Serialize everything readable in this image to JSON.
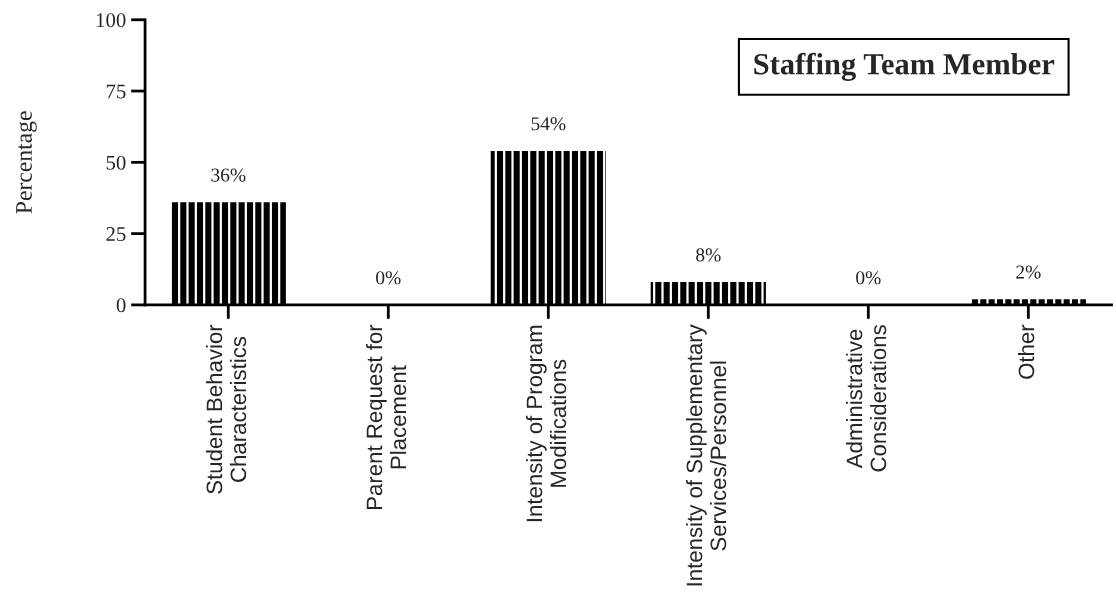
{
  "chart_data": {
    "type": "bar",
    "title": "Staffing Team Member",
    "ylabel": "Percentage",
    "categories": [
      "Student Behavior\nCharacteristics",
      "Parent Request for\nPlacement",
      "Intensity of Program\nModifications",
      "Intensity of Supplementary\nServices/Personnel",
      "Administrative\nConsiderations",
      "Other"
    ],
    "values": [
      36,
      0,
      54,
      8,
      0,
      2
    ],
    "color": "#000000",
    "value_labels": [
      "36%",
      "0%",
      "54%",
      "8%",
      "0%",
      "2%"
    ],
    "ylim": [
      0,
      100
    ],
    "yticks": [
      0,
      25,
      50,
      75,
      100
    ],
    "grid": false
  }
}
